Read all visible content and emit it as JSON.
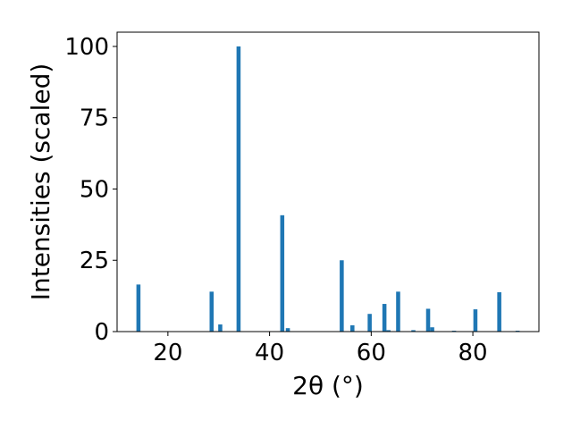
{
  "chart_data": {
    "type": "bar",
    "title": "",
    "xlabel": "2θ (°)",
    "ylabel": "Intensities (scaled)",
    "xlim": [
      10,
      93
    ],
    "ylim": [
      0,
      105
    ],
    "xticks": [
      20,
      40,
      60,
      80
    ],
    "yticks": [
      0,
      25,
      50,
      75,
      100
    ],
    "grid": false,
    "legend": "none",
    "bar_color": "#1f77b4",
    "bar_width": 0.8,
    "x": [
      14.2,
      28.6,
      30.3,
      33.9,
      42.5,
      43.6,
      54.2,
      56.3,
      59.7,
      62.6,
      63.4,
      65.3,
      68.3,
      71.2,
      72.0,
      76.3,
      80.5,
      85.2,
      88.8
    ],
    "values": [
      16.5,
      14.0,
      2.5,
      100.0,
      40.8,
      1.2,
      25.0,
      2.2,
      6.2,
      9.7,
      0.5,
      14.0,
      0.5,
      8.0,
      1.5,
      0.3,
      7.8,
      13.8,
      0.3
    ]
  }
}
